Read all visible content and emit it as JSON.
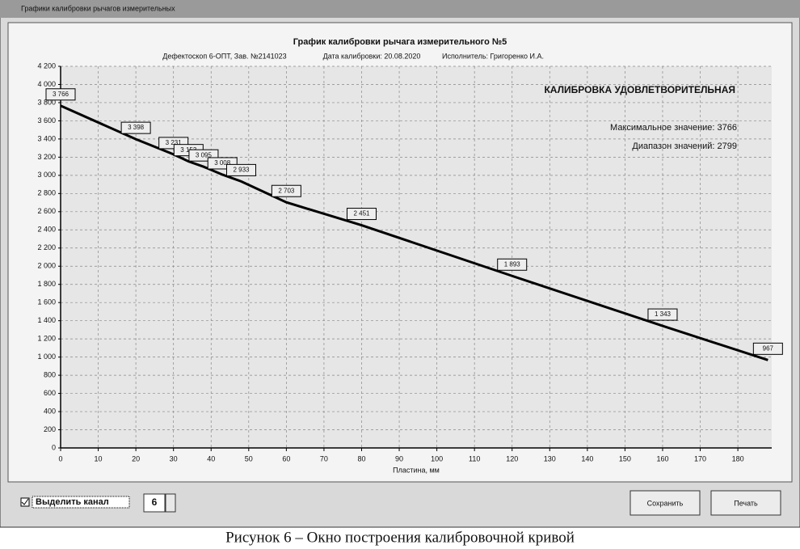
{
  "window": {
    "title": "Графики калибровки рычагов измерительных"
  },
  "chart_data": {
    "type": "line",
    "title": "График калибровки рычага измерительного №5",
    "subtitle": [
      "Дефектоскоп 6-ОПТ, Зав. №2141023",
      "Дата калибровки: 20.08.2020",
      "Исполнитель: Григоренко И.А."
    ],
    "annotations": [
      "КАЛИБРОВКА УДОВЛЕТВОРИТЕЛЬНАЯ",
      "Максимальное значение: 3766",
      "Диапазон значений: 2799"
    ],
    "x_label": "Пластина, мм",
    "x": [
      0,
      20,
      30,
      34,
      38,
      43,
      48,
      60,
      80,
      120,
      160,
      188
    ],
    "series": [
      {
        "name": "канал 6",
        "color": "#000000",
        "values": [
          3766,
          3398,
          3231,
          3153,
          3095,
          3008,
          2933,
          2703,
          2451,
          1893,
          1343,
          967
        ],
        "value_labels": [
          "3 766",
          "3 398",
          "3 231",
          "3 153",
          "3 095",
          "3 008",
          "2 933",
          "2 703",
          "2 451",
          "1 893",
          "1 343",
          "967"
        ]
      }
    ],
    "xlim": [
      0,
      189
    ],
    "xticks": [
      0,
      10,
      20,
      30,
      40,
      50,
      60,
      70,
      80,
      90,
      100,
      110,
      120,
      130,
      140,
      150,
      160,
      170,
      180
    ],
    "ylim": [
      0,
      4200
    ],
    "yticks": [
      0,
      200,
      400,
      600,
      800,
      {
        "value": 1000,
        "label": "1 000"
      },
      {
        "value": 1200,
        "label": "1 200"
      },
      {
        "value": 1400,
        "label": "1 400"
      },
      {
        "value": 1600,
        "label": "1 600"
      },
      {
        "value": 1800,
        "label": "1 800"
      },
      {
        "value": 2000,
        "label": "2 000"
      },
      {
        "value": 2200,
        "label": "2 200"
      },
      {
        "value": 2400,
        "label": "2 400"
      },
      {
        "value": 2600,
        "label": "2 600"
      },
      {
        "value": 2800,
        "label": "2 800"
      },
      {
        "value": 3000,
        "label": "3 000"
      },
      {
        "value": 3200,
        "label": "3 200"
      },
      {
        "value": 3400,
        "label": "3 400"
      },
      {
        "value": 3600,
        "label": "3 600"
      },
      {
        "value": 3800,
        "label": "3 800"
      },
      {
        "value": 4000,
        "label": "4 000"
      },
      {
        "value": 4200,
        "label": "4 200"
      }
    ],
    "grid": true
  },
  "controls": {
    "checkbox": "Выделить канал",
    "spinner": "6",
    "buttons": [
      "Сохранить",
      "Печать"
    ]
  },
  "caption": "Рисунок 6 – Окно построения калибровочной кривой"
}
